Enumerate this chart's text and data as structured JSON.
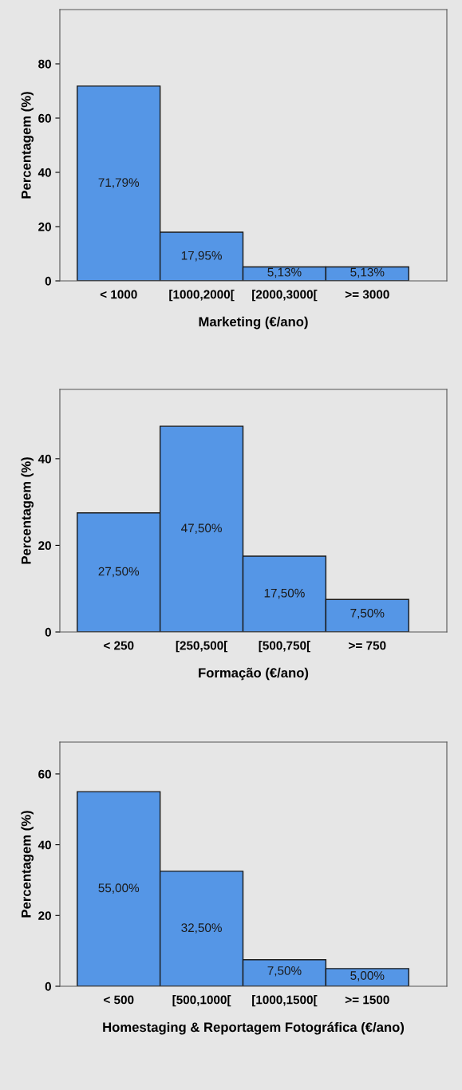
{
  "chart_data": [
    {
      "type": "bar",
      "xlabel": "Marketing (€/ano)",
      "ylabel": "Percentagem (%)",
      "categories": [
        "< 1000",
        "[1000,2000[",
        "[2000,3000[",
        ">= 3000"
      ],
      "values": [
        71.79,
        17.95,
        5.13,
        5.13
      ],
      "value_labels": [
        "71,79%",
        "17,95%",
        "5,13%",
        "5,13%"
      ],
      "color": "#5596e6",
      "ylim": [
        0,
        100
      ],
      "yticks": [
        0,
        20,
        40,
        60,
        80
      ],
      "grid": false,
      "legend": false
    },
    {
      "type": "bar",
      "xlabel": "Formação (€/ano)",
      "ylabel": "Percentagem (%)",
      "categories": [
        "< 250",
        "[250,500[",
        "[500,750[",
        ">= 750"
      ],
      "values": [
        27.5,
        47.5,
        17.5,
        7.5
      ],
      "value_labels": [
        "27,50%",
        "47,50%",
        "17,50%",
        "7,50%"
      ],
      "color": "#5596e6",
      "ylim": [
        0,
        56
      ],
      "yticks": [
        0,
        20,
        40
      ],
      "grid": false,
      "legend": false
    },
    {
      "type": "bar",
      "xlabel": "Homestaging & Reportagem Fotográfica (€/ano)",
      "ylabel": "Percentagem (%)",
      "categories": [
        "< 500",
        "[500,1000[",
        "[1000,1500[",
        ">= 1500"
      ],
      "values": [
        55.0,
        32.5,
        7.5,
        5.0
      ],
      "value_labels": [
        "55,00%",
        "32,50%",
        "7,50%",
        "5,00%"
      ],
      "color": "#5596e6",
      "ylim": [
        0,
        69
      ],
      "yticks": [
        0,
        20,
        40,
        60
      ],
      "grid": false,
      "legend": false
    }
  ]
}
